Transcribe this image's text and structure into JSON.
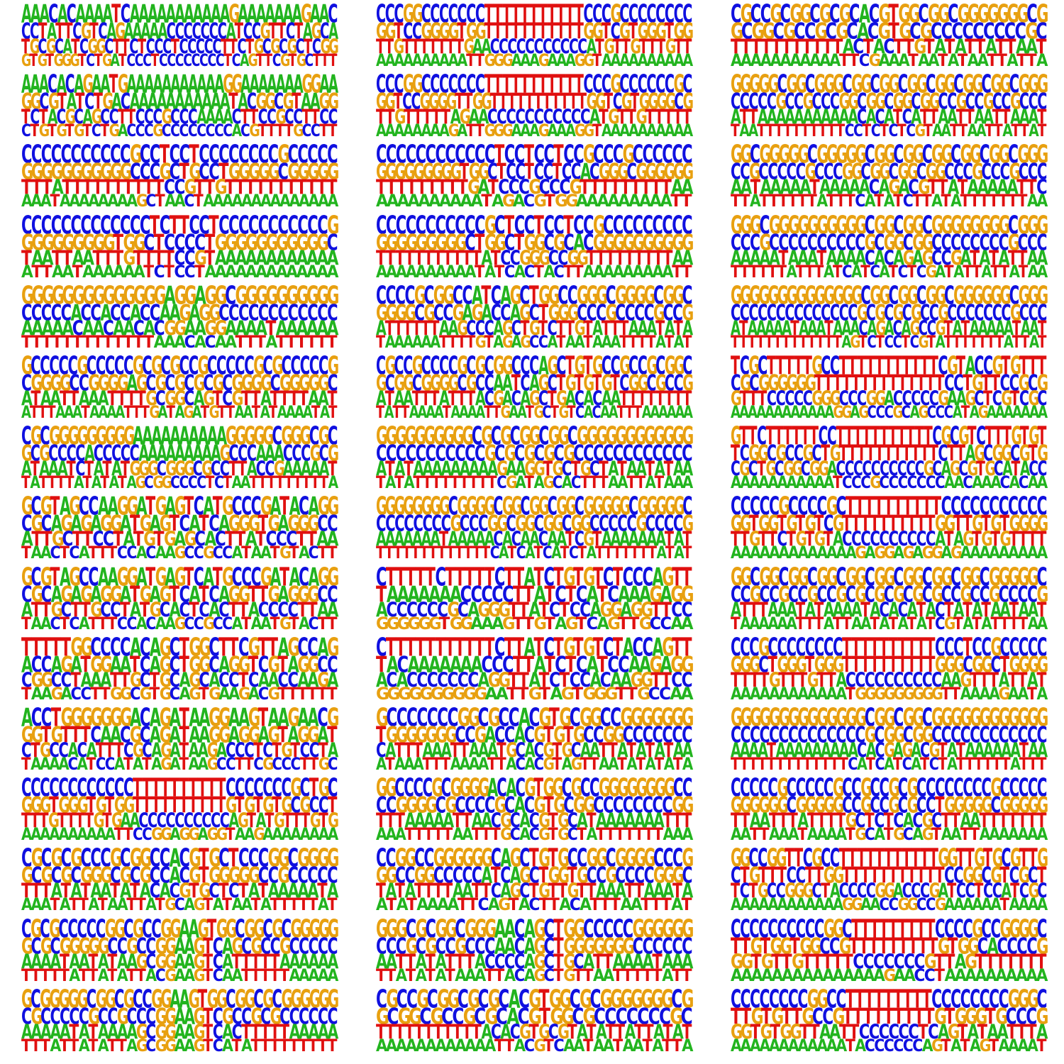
{
  "figure": {
    "rows": 15,
    "cols": 3,
    "colors": {
      "A": "#22b41e",
      "C": "#1010e0",
      "G": "#e8a010",
      "T": "#e01010"
    },
    "logos": [
      [
        "AAACACAAAATCAAAAAAAAAAAGAAAAAAAGAAC",
        "CCTATTCGTCAGAAAAACCCCCCCATCCGTTCTAGCA",
        "TGCGCATCGGCTTCTCCCTCCCCCTTCTGCGCGCTCGG",
        "GTGTGGGTCTGATCCCTCCCCCCCCTCAGTTCGTGCTTT"
      ],
      [
        "CCCGGCCCCCCCTTTTTTTTTTTCCCGCCCCCCCC",
        "GGTCCGGGGTGGTTTTTTTTTTTGGTCGTGGGTGG",
        "TTGTTTTTTTGAACCCCCCCCCCCATGTTGTTTGTT",
        "AAAAAAAAAATTGGGAAAGAAAGGTAAAAAAAAAA"
      ],
      [
        "CGCCGCGGCGCGCACGTGGCGGCGGGGGGGCG",
        "GCGGCGCCGCGCACGTGCGCCCCCCCCCGC",
        "TTTTTTTTTTTACTACTTGTATATTATTAAT",
        "AAAAAAAAAAATTCGAAATAATATAATTATTA"
      ],
      [
        "AAACACAGAATGAAAAAAAAAAAGGAAAAAAAGGAA",
        "GGCGTATCTGACAAAAAAAAAAATACGGCGTAAGG",
        "TCTACGCAGCCTTCCCGCCCAAAACTTCCGCCTTCC",
        "CTGTGTGTCTGACCCGCCCCCCCCACGTTTTGCCTT"
      ],
      [
        "CCCGGCCCCCCCTTTTTTTTTTTCCCGCCCCCCGC",
        "GGTCCGGGGTTGGTTTTTTTTTTTGGTCGTGGGGCG",
        "TTGTTTTTAGAACCCCCCCCCCCATGTTGTTTTT",
        "AAAAAAAAGATTGGGAAAGAAAGGTAAAAAAAAAA"
      ],
      [
        "GGGGGCGGCGGGCGGCGGCGGCGGCGGCGGCGGG",
        "CCCCCGCCGCCCGGCGGCGGCGGCCGCCGCCGCCC",
        "ATTAAAAAAAAAAACACATCATTAATTAATTAAAT",
        "TAATTTTTTTTTTCCTCTCTCGTAATTAATTATTAT"
      ],
      [
        "CCCCCCCCCCCGCCTCCTCCCCCCCCGCCCCC",
        "GGGGGGGGGGGCCCGCTGCCTGGGGGCGGGGG",
        "TTTATTTTTTTTTTCCGTTGTTTTTTTTTTT",
        "AAATAAAAAAAAGCTAACTAAAAAAAAAAAAAA"
      ],
      [
        "CCCCCCCCCCCCTCCTCCTCCGCCCGCCCCCC",
        "GGGGGGGGGTGGCTCCTCCTCCACGGGCGGGGGG",
        "TTTTTTTTTGATCCCGCCCGTTTTTTTTTAA",
        "AAAAAAAAAATAGACGTGGAAAAAAAAATT"
      ],
      [
        "GGCGGGGGCGGGGGCGGCGGCGGCGGCGGCGGG",
        "CCGCCCCCGCCCGGCGGCGGCGGCCCGCCCGCCC",
        "AATAAAAATAAAAACAGACGTTATAAAAATTC",
        "TTATTTTTTATTTCATATCTTATATTTTTTTAA"
      ],
      [
        "CCCCCCCCCCCCCTCTTCCTCCCCCCCCCCCG",
        "GGGGGGGGGTGGCTCCCCTGGGGGGGGGGGC",
        "TAATTAATTTGTTTTCCGTAAAAAAAAAAAA",
        "ATTAATAAAAAATCTCCTAAAAAAAAAAAAA"
      ],
      [
        "CCCCCCCCCCCGCTCCTCCTCCGCCCCCCCCC",
        "GGGGGGGGGCTGGCTGGCGCACGGGGGGGGGG",
        "TTTTTTTTTTTATCCGGGCCGGTTTTTTTTTAA",
        "AAAAAAAAAATATCACTACTTAAAAAAAAATT"
      ],
      [
        "GGGCGGGGGGGGGGCGGCGGCGGGGGGGGCGGG",
        "CCCGCCCCCCCCCCGCGGCGGCCCCCCCCGCCC",
        "AAAAATAAATAAAACACAGAGCCGATATATTAA",
        "TTTTTTATTTATCATCATCTCGATATTATTATAA"
      ],
      [
        "GGGGGGGGGGGGGGAGGAGGCGGGGGGGGGG",
        "CCCCCACCACCACCAAGAGGCCCCCCCCCCCC",
        "AAAAACAACAACACGGAAGGAAAATAAAAAA",
        "TTTTTTTTTTTTTAAACACAATTTATTTTTT"
      ],
      [
        "CCCCGCGGCCATCAGCTGGCCGGGCGGGGCGGC",
        "GGGGCGCCGAGACCAGCTGGGCCCGCCCCGCCG",
        "ATTTTTTAAGCCCAGCTGTCTTGTATTTAAATATA",
        "TAAAAAATTTTGTAGAGCCATAATAAATTTTATAT"
      ],
      [
        "GGGGGGGGGGGGGGCGGCGGCGGCGGGGGGCGGG",
        "CCCCCCCCCCCCCCGCGCGCGCCGCCCCCCCGCCC",
        "ATAAAAATAAATAAACAGACAGCCGTATAAAAATAAT",
        "TTTTTTTTTTTTTAGTCTCCTCGTATTTTTTTATTAT"
      ],
      [
        "GCCCCCGCCCCCGCGCGCCGCCCCCGCGCCCCCG",
        "CGGGGCCGGGGAGCGCGCGCGCGGGGCGGGGGC",
        "ATAATTAAATTTTGCGGCAGTCGTTATTTTAAT",
        "ATTTAAATAAAATTTGATAGATGTTAATATAAAATAT"
      ],
      [
        "CGCCGCCCCGCGCGGCCCAGCTGTGCCGCCGCGGC",
        "GCGGCGGGGCGCCAATCAGCTGTGTGTCGGCGCCG",
        "ATAATTTATTTACGACAGCTGACACAATTTTTTTT",
        "TATTAAAATAAAATTGAATGCTGTCACAATTTAAAAAA"
      ],
      [
        "TCGCTTTTTGCCTTTTTTTTTTTCGTACCGTGTTT",
        "CGCGGGGGGTTTTTTTTTTTTTTCCTGTTCCGCG",
        "GTTTCCCCCGGGCCCGGACCCCCGAAGCTCGTCGC",
        "AAAAAAAAAAAAGGAGCCCGCAGCCCATAGAAAAAAA"
      ],
      [
        "CGCGGGGGGGGGAAAAAAAAAAGGGGGCGGGCGC",
        "GCGCCCCACCCCCAAAAAAAAAGCCCAAACCCGCG",
        "ATAAATCTATATGGGCGGGCGCCTTACCGAAAAAT",
        "TATTTTATATATAGCGGCCCCTCTAATTTTTTTTTA"
      ],
      [
        "GGGGGGGGGGCGCGCGGCGGCGGGGGGGGGGGG",
        "CCCCCCCCCCCGCGCGCGCGCCCCCCCCCCCC",
        "ATATAAAAAAAAAGAAGGTGCTGCTATAATATAA",
        "TATATTTTTTTTTCGATAGCACTTTAATTATAAA"
      ],
      [
        "GTTCTTTTTTCCTTTTTTTTTTTCGCGTCTTTGTGT",
        "TCGGCGCCGCTGTTTTTTTTTTTCTTAGCGGCGTG",
        "CGCTGCGGCGGACCCCCCCCCCGCAGCGTGCATACC",
        "AAAAAAAAAAATCCCGCCCCCCCAACAAACACAA"
      ],
      [
        "GCGTAGCCAAGGATGAGTCATGCCCGATACAGG",
        "CGCAGAGAGGATGAGTCATCAGGGTGAGGGCC",
        "ATTGCTTCCTATGTGAGCACTTATCCCTTAA",
        "TAACTCATTTCCACAAGCCGCCATAATGTACTT"
      ],
      [
        "GGGGGGGGCGGGGCGGCGGCGGCGGGGGCGGGGGC",
        "CCCCCCCCGCCCGGCGGCGGCGGCCCCCGCCCCG",
        "AAAAAAATAAAAACACAACAATCGTAAAAAAATAT",
        "TTTTTTTTTTTTTCATCATCATCTATTTTTTTATAT"
      ],
      [
        "CCCCCGCCCCGCTTTTTTTTTTCCCCCCCCCCC",
        "GGTGGTGTGTCGTTTTTTTTTTGGTTGTGTGGGG",
        "TTGTTCTGTGTACCCCCCCCCCATAGTGTGTTTT",
        "AAAAAAAAAAAAAGAGGAGAGGAGAAAAAAAAA"
      ],
      [
        "GCGTAGCCAAGGATGAGTCATGCCCGATACAGG",
        "CGCAGAGAGGATGAGTCATCAGGTTGAGGGCC",
        "ATTGCTTGCCTATGCACTCACTTACCCCTTAA",
        "TAACTCATTTCCACAAGCCGCCATAATGTACTT"
      ],
      [
        "CTTTTTCTTTTTCTTATCTGTGTCTCCCAGTT",
        "TAAAAAAACCCCCTTATCTCATCAAAGAGG",
        "ACCCCCCGCAGGGTTATCTCCAGGAGGTTCC",
        "GGGGGGTGGAAAGTTGTAGTCAGTTGCCAA"
      ],
      [
        "GGCGGCGGCGGCGGCGGCGGCGGCGGCGGGGGC",
        "CCGCCGCCGCCGCGCGCGCGCGCCGCCGCCCCG",
        "ATTTAAATATAAAATACACATACTATATAATAAT",
        "TAAAAAATTTATTAATATATATCGTATATTTTAA"
      ],
      [
        "TTTTTGGCCCCACAGCTGGCTTCGTTAGCCAG",
        "ACCAGATGGAATCAGCTGGCAGGTCGTAGGCC",
        "CGGCCTAAATTGCTGCAGCACCTCAACCAAGA",
        "TAAGACCTTGGCGTGCAGTGAAGACGTTTTTT"
      ],
      [
        "CTTTTTTTTTTTCTTATCTGTGTCTACCAGTT",
        "TACAAAAAAACCCTTATCTCATCCAAGAGG",
        "ACACCCCCCCAGGTTATCTCCACAAGGTTCC",
        "GGGGGGGGGGAATTGTAGTGGGTTGCCAA"
      ],
      [
        "CCCGCCCCCCCCTTTTTTTTTTCCCTCCGCCCCC",
        "GGGCTGGGTGGGTTTTTTTTTTGGGCGGCTGGGG",
        "TTTTGTTTGTTACCCCCCCCCCAAGTTTATTAT",
        "AAAAAAAAAAAATGGGGGGGGGTTAAAAGAATA"
      ],
      [
        "ACCTGGGGGGGACAGATAAGGAAGTAAGAACG",
        "GGTGTTTCAACGCAGATAAGGAGGAGTAGGAT",
        "CTGCCACATTTCGCAGATAAGACCCTCTGTCCTA",
        "TAAAACATCCATATAGATAAGCCTTCGCCCTTGC"
      ],
      [
        "GCCCCCCCGGCGCCACGTGCGGCCGGGGGGG",
        "TGGGGGGGCCGACCACGTGTGCCGGCCCCCCC",
        "CATTTAAATTAAATGCACGTGCAATTATATATAA",
        "ATAAATTTAAAATTACACGTAGTTAATATATATA"
      ],
      [
        "GGGGGGGGGGGGGGCGGCGGCGGGGGGGGGGGG",
        "CCCCCCCCCCCCCCGCGGCGGCCCCCCCCCCCC",
        "AAAATAAAAAAAAACACGAGACGTATAAAAAATAA",
        "TTTTTTTTTTTTTCATCATCATCTATTTTTTATTT"
      ],
      [
        "CCCCCCCCCCCCTTTTTTTTTTCCCCCCCGCTGC",
        "GGGTGGGTGTGGTTTTTTTTTTGTGTGTGCGCCT",
        "TTTGTTTTGTGAACCCCCCCCCCAGTATGTTTGTG",
        "AAAAAAAAAATTCCGGAGGAGGTAAGAAAAAAAA"
      ],
      [
        "GGCCCCGCGGGGACACGTGGCGCCGGGGGGGGCC",
        "CCGGGGCGCCCCGCACGTGCGGCCCCCCCCGG",
        "TTTAAAAATTAACGCACGTGCATAAAAAAATTT",
        "AAATTTTTAATTTGCACGTGCTATTTTTTTAAA"
      ],
      [
        "CCCCCGCCCCCGCCGCCGCGCCCCCCCCGCCCCC",
        "GGGGGGCGGGGGCCGCCGCGCCTGGGGGCGGGGG",
        "TTAATTTATTTTGCTCTCACGCTTAATTTTTTT",
        "AATTAAATAAAATGCATGCAGTAATTAAAAAAA"
      ],
      [
        "CGCGCGCCCGCGGCCACGTGCTCCCGGCGGGG",
        "GCGCGCGGGCGCGCCACGTGGGGGCCGCCCCC",
        "TTTATATAATATACACGTGCTCTATAAAAATA",
        "AAATATTATAATTATGCAGTATAATATTTTTAT"
      ],
      [
        "CCGGCCGGGGGGCAGCTGTGCCGGCGGGGCCCG",
        "GGCCGGCCCCCATCAGCTGGTGCCGCCCCGGGC",
        "TATATTTTAATTCAGCTGTTGTTAAATTAAATA",
        "ATATAAAATTCAGTACTTACATTTAATTTAT"
      ],
      [
        "GGCCGGTTCGCCTTTTTTTTTTTGGTTGTGCGTTG",
        "CTGTTTCCTTGGTTTTTTTTTTTCCGGCGTCGCT",
        "TCTGCCGGGCTACCCCGGACCCGATCCTCCATCGC",
        "AAAAAAAAAAAAGGAACCGGCCGAAAAAATAAAA"
      ],
      [
        "CGCGCCCCCGGCGCCGGAAGTGGCGGCGCGGGGG",
        "GCGCGGGGGCCGCCGGAAGTCAGCGCCGCCCCC",
        "AAAATAATATAAGCGGAAGTCATTTTTAAAAAA",
        "TTTTTATTATATTACGAAGTCAATTTTTAAAAA"
      ],
      [
        "GGGCGCGGCGGGAACAGCTGGCCCCCGGGGGG",
        "CCCGCGCCGCCCAACAGCTGGGGGGGCCCCCC",
        "AATTATATTTACCCCAGCTGCATTAAAATAAA",
        "TTATATATAAATTACAGCTGTTAATTTTTATT"
      ],
      [
        "CCCCCCCCCCGGCTTTTTTTTTCCCCGCCGGGGC",
        "TTGTGGTGGCCGTTTTTTTTTGTGGCACCCCG",
        "GGTGTTGTTTTTCCCCCCCGTTAGTTTTTTT",
        "AAAAAAAAAAAAAAAGAACCTAAAAAAAAAA"
      ],
      [
        "GCGGGGGCGGCGCCGGAAGTGGCGGCGCGGGGGG",
        "CGCCCCCGCCGCCCGGAAGTCGCCGCGCCCCCC",
        "AAAAATATAAAAGCGGAAGTCACTTTTTAAAAA",
        "TTTATTATATTAGCGGAAGTCATATTTTTTTTT"
      ],
      [
        "CGCCGCGGCGCGCACGTGGCGCGGGGGGGCG",
        "GCGGCGCCGCGCACGTGGCGCCCCCCCGC",
        "TTTTTTTTTTTACACGTGCGTATATTATTATAT",
        "AAAAAAAAAAAATTACGTCAATAATAATATTA"
      ],
      [
        "CCCCCCCCGGCCTTTTTTTTTCCCCCCCCGGGC",
        "TTGTGTTGCCGTTTTTTTTTGTGGGTGCCCG",
        "GGTGTGGTTAATTCCCCCCTCAGTATAATTTA",
        "AAAAAAAAAAAATACCCCCCAGTATAGTAAAAT"
      ]
    ]
  }
}
